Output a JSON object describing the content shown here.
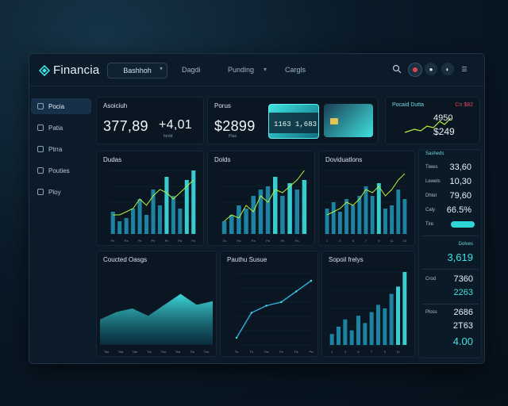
{
  "app": {
    "name": "Financia"
  },
  "topnav": {
    "selected": "Bashhoh",
    "links": [
      "Dagdi",
      "Punding",
      "Cargls"
    ]
  },
  "sidebar": {
    "items": [
      {
        "label": "Pocia",
        "active": true
      },
      {
        "label": "Patia",
        "active": false
      },
      {
        "label": "Ptrra",
        "active": false
      },
      {
        "label": "Pouties",
        "active": false
      },
      {
        "label": "Ploy",
        "active": false
      }
    ]
  },
  "kpi": {
    "account": {
      "title": "Asoiciuh",
      "value": "377,89",
      "change": "+4,01",
      "sub": "fordd"
    },
    "card2": {
      "title": "Porus",
      "value": "$2899",
      "sub": "Ptas"
    },
    "cards": {
      "front_number": "1163 1,683"
    },
    "pocket": {
      "title": "Pocaid Dutta",
      "badge": "Cn $82",
      "value1": "4950",
      "value2": "$249"
    }
  },
  "charts_top": [
    {
      "title": "Dudas"
    },
    {
      "title": "Dolds"
    },
    {
      "title": "Doviduatlons"
    }
  ],
  "charts_bottom": [
    {
      "title": "Coucted Oasgs"
    },
    {
      "title": "Pauthu Susue"
    },
    {
      "title": "Sopoil frelys"
    }
  ],
  "right_panel": {
    "header": "Sasheds",
    "rows": [
      {
        "label": "Tiwes",
        "value": "33,60"
      },
      {
        "label": "Lewels",
        "value": "10,30"
      },
      {
        "label": "Dhtel",
        "value": "79,60"
      },
      {
        "label": "Caly",
        "value": "66.5%"
      },
      {
        "label": "Tire",
        "value": ""
      }
    ],
    "mid_label": "Dolves",
    "mid_value": "3,619",
    "lower": [
      {
        "label": "Crod",
        "value": "7360"
      },
      {
        "label": "",
        "value": "2263"
      },
      {
        "label": "Ploss",
        "value": "2686"
      },
      {
        "label": "",
        "value": "2T63"
      },
      {
        "label": "",
        "value": "4.00"
      }
    ]
  },
  "colors": {
    "accent": "#2fd6d8",
    "bar": "#1f8fb0",
    "bar_hi": "#3ee0e2",
    "line": "#b6f03a"
  },
  "chart_data": [
    {
      "type": "bar",
      "title": "Dudas",
      "categories": [
        "Fe",
        "Ta",
        "Fa",
        "Th",
        "Fh",
        "Fr",
        "Pe",
        "Fa",
        "Fe",
        "Po",
        "Pa",
        "Ta",
        "Fe"
      ],
      "values": [
        35,
        20,
        25,
        40,
        55,
        30,
        70,
        45,
        90,
        60,
        40,
        85,
        100
      ],
      "series": [
        {
          "name": "line",
          "values": [
            30,
            30,
            35,
            40,
            55,
            45,
            60,
            70,
            65,
            55,
            65,
            75,
            85
          ]
        }
      ]
    },
    {
      "type": "bar",
      "title": "Dolds",
      "categories": [
        "Ta",
        "Fu",
        "Fa",
        "Fu",
        "Fa",
        "Fe",
        "Fa",
        "Tm",
        "Fe",
        "Fe",
        "Fa",
        "Pa"
      ],
      "values": [
        20,
        30,
        45,
        40,
        60,
        70,
        75,
        90,
        60,
        80,
        70,
        85
      ],
      "series": [
        {
          "name": "line",
          "values": [
            20,
            30,
            25,
            45,
            35,
            60,
            50,
            70,
            65,
            75,
            85,
            100
          ]
        }
      ]
    },
    {
      "type": "bar",
      "title": "Doviduatlons",
      "categories": [
        "1",
        "2",
        "3",
        "4",
        "5",
        "6",
        "7",
        "8",
        "9",
        "10",
        "11",
        "12",
        "13"
      ],
      "values": [
        40,
        50,
        35,
        55,
        45,
        60,
        75,
        60,
        80,
        40,
        45,
        70,
        55
      ],
      "series": [
        {
          "name": "line",
          "values": [
            30,
            35,
            40,
            50,
            45,
            55,
            70,
            65,
            75,
            60,
            70,
            85,
            95
          ]
        }
      ]
    },
    {
      "type": "area",
      "title": "Coucted Oasgs",
      "categories": [
        "Tas",
        "Taa",
        "Tae",
        "Tia",
        "Tuo",
        "Tea",
        "Tia",
        "Tun"
      ],
      "values": [
        35,
        45,
        50,
        40,
        55,
        70,
        55,
        60
      ]
    },
    {
      "type": "line",
      "title": "Pauthu Susue",
      "categories": [
        "Tu",
        "Tu",
        "Tra",
        "Fe",
        "Fa",
        "Pa"
      ],
      "values": [
        10,
        45,
        55,
        60,
        75,
        90
      ]
    },
    {
      "type": "bar",
      "title": "Sopoil frelys",
      "categories": [
        "1",
        "2",
        "3",
        "4",
        "5",
        "6",
        "7",
        "8",
        "9",
        "10",
        "11",
        "12"
      ],
      "values": [
        15,
        25,
        35,
        20,
        40,
        30,
        45,
        55,
        50,
        70,
        80,
        100
      ]
    }
  ]
}
